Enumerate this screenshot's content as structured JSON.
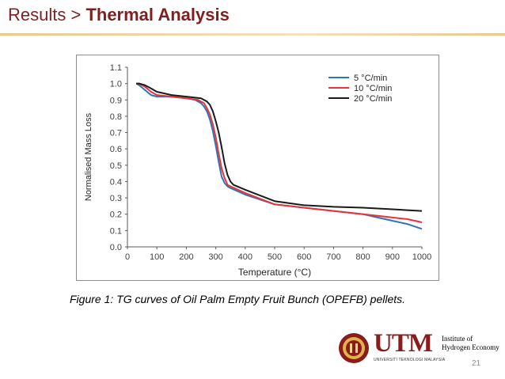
{
  "slide": {
    "title_prefix": "Results > ",
    "title_main": "Thermal Analysis",
    "caption": "Figure 1: TG curves of Oil Palm Empty Fruit Bunch (OPEFB) pellets.",
    "page_number": "21"
  },
  "logo": {
    "utm": "UTM",
    "utm_sub": "UNIVERSITI TEKNOLOGI MALAYSIA",
    "institute_line1": "Institute of",
    "institute_line2": "Hydrogen Economy"
  },
  "colors": {
    "title": "#7f1f1f",
    "rule": "#e9c98d",
    "series_5": "#2e75b6",
    "series_10": "#e8333b",
    "series_20": "#1a1a1a"
  },
  "chart_data": {
    "type": "line",
    "xlabel": "Temperature (°C)",
    "ylabel": "Normalised Mass Loss",
    "xlim": [
      0,
      1000
    ],
    "ylim": [
      0.0,
      1.1
    ],
    "xticks": [
      "0",
      "100",
      "200",
      "300",
      "400",
      "500",
      "600",
      "700",
      "800",
      "900",
      "1000"
    ],
    "yticks": [
      "0.0",
      "0.1",
      "0.2",
      "0.3",
      "0.4",
      "0.5",
      "0.6",
      "0.7",
      "0.8",
      "0.9",
      "1.0",
      "1.1"
    ],
    "grid": false,
    "legend": "top-right",
    "series": [
      {
        "name": "5 °C/min",
        "color": "#2e75b6",
        "x": [
          30,
          40,
          60,
          80,
          100,
          150,
          200,
          230,
          250,
          260,
          270,
          280,
          290,
          300,
          310,
          320,
          330,
          340,
          350,
          400,
          500,
          600,
          700,
          800,
          850,
          900,
          950,
          1000
        ],
        "y": [
          1.0,
          0.99,
          0.96,
          0.93,
          0.92,
          0.92,
          0.91,
          0.9,
          0.88,
          0.86,
          0.83,
          0.78,
          0.71,
          0.62,
          0.52,
          0.43,
          0.39,
          0.37,
          0.36,
          0.32,
          0.26,
          0.24,
          0.22,
          0.2,
          0.18,
          0.16,
          0.14,
          0.11
        ]
      },
      {
        "name": "10 °C/min",
        "color": "#e8333b",
        "x": [
          30,
          40,
          60,
          80,
          100,
          150,
          200,
          240,
          260,
          270,
          280,
          290,
          300,
          310,
          320,
          330,
          340,
          350,
          400,
          500,
          600,
          700,
          800,
          850,
          900,
          950,
          1000
        ],
        "y": [
          1.0,
          1.0,
          0.98,
          0.95,
          0.93,
          0.92,
          0.91,
          0.9,
          0.88,
          0.85,
          0.81,
          0.75,
          0.67,
          0.57,
          0.48,
          0.42,
          0.38,
          0.37,
          0.33,
          0.26,
          0.24,
          0.22,
          0.2,
          0.19,
          0.18,
          0.17,
          0.15
        ]
      },
      {
        "name": "20 °C/min",
        "color": "#1a1a1a",
        "x": [
          30,
          40,
          60,
          80,
          100,
          150,
          200,
          250,
          270,
          280,
          290,
          300,
          310,
          320,
          330,
          340,
          350,
          360,
          400,
          500,
          600,
          700,
          800,
          850,
          900,
          950,
          1000
        ],
        "y": [
          1.0,
          1.0,
          0.99,
          0.97,
          0.95,
          0.93,
          0.92,
          0.91,
          0.89,
          0.87,
          0.83,
          0.77,
          0.7,
          0.61,
          0.51,
          0.44,
          0.4,
          0.38,
          0.35,
          0.28,
          0.255,
          0.245,
          0.24,
          0.235,
          0.23,
          0.225,
          0.22
        ]
      }
    ]
  }
}
